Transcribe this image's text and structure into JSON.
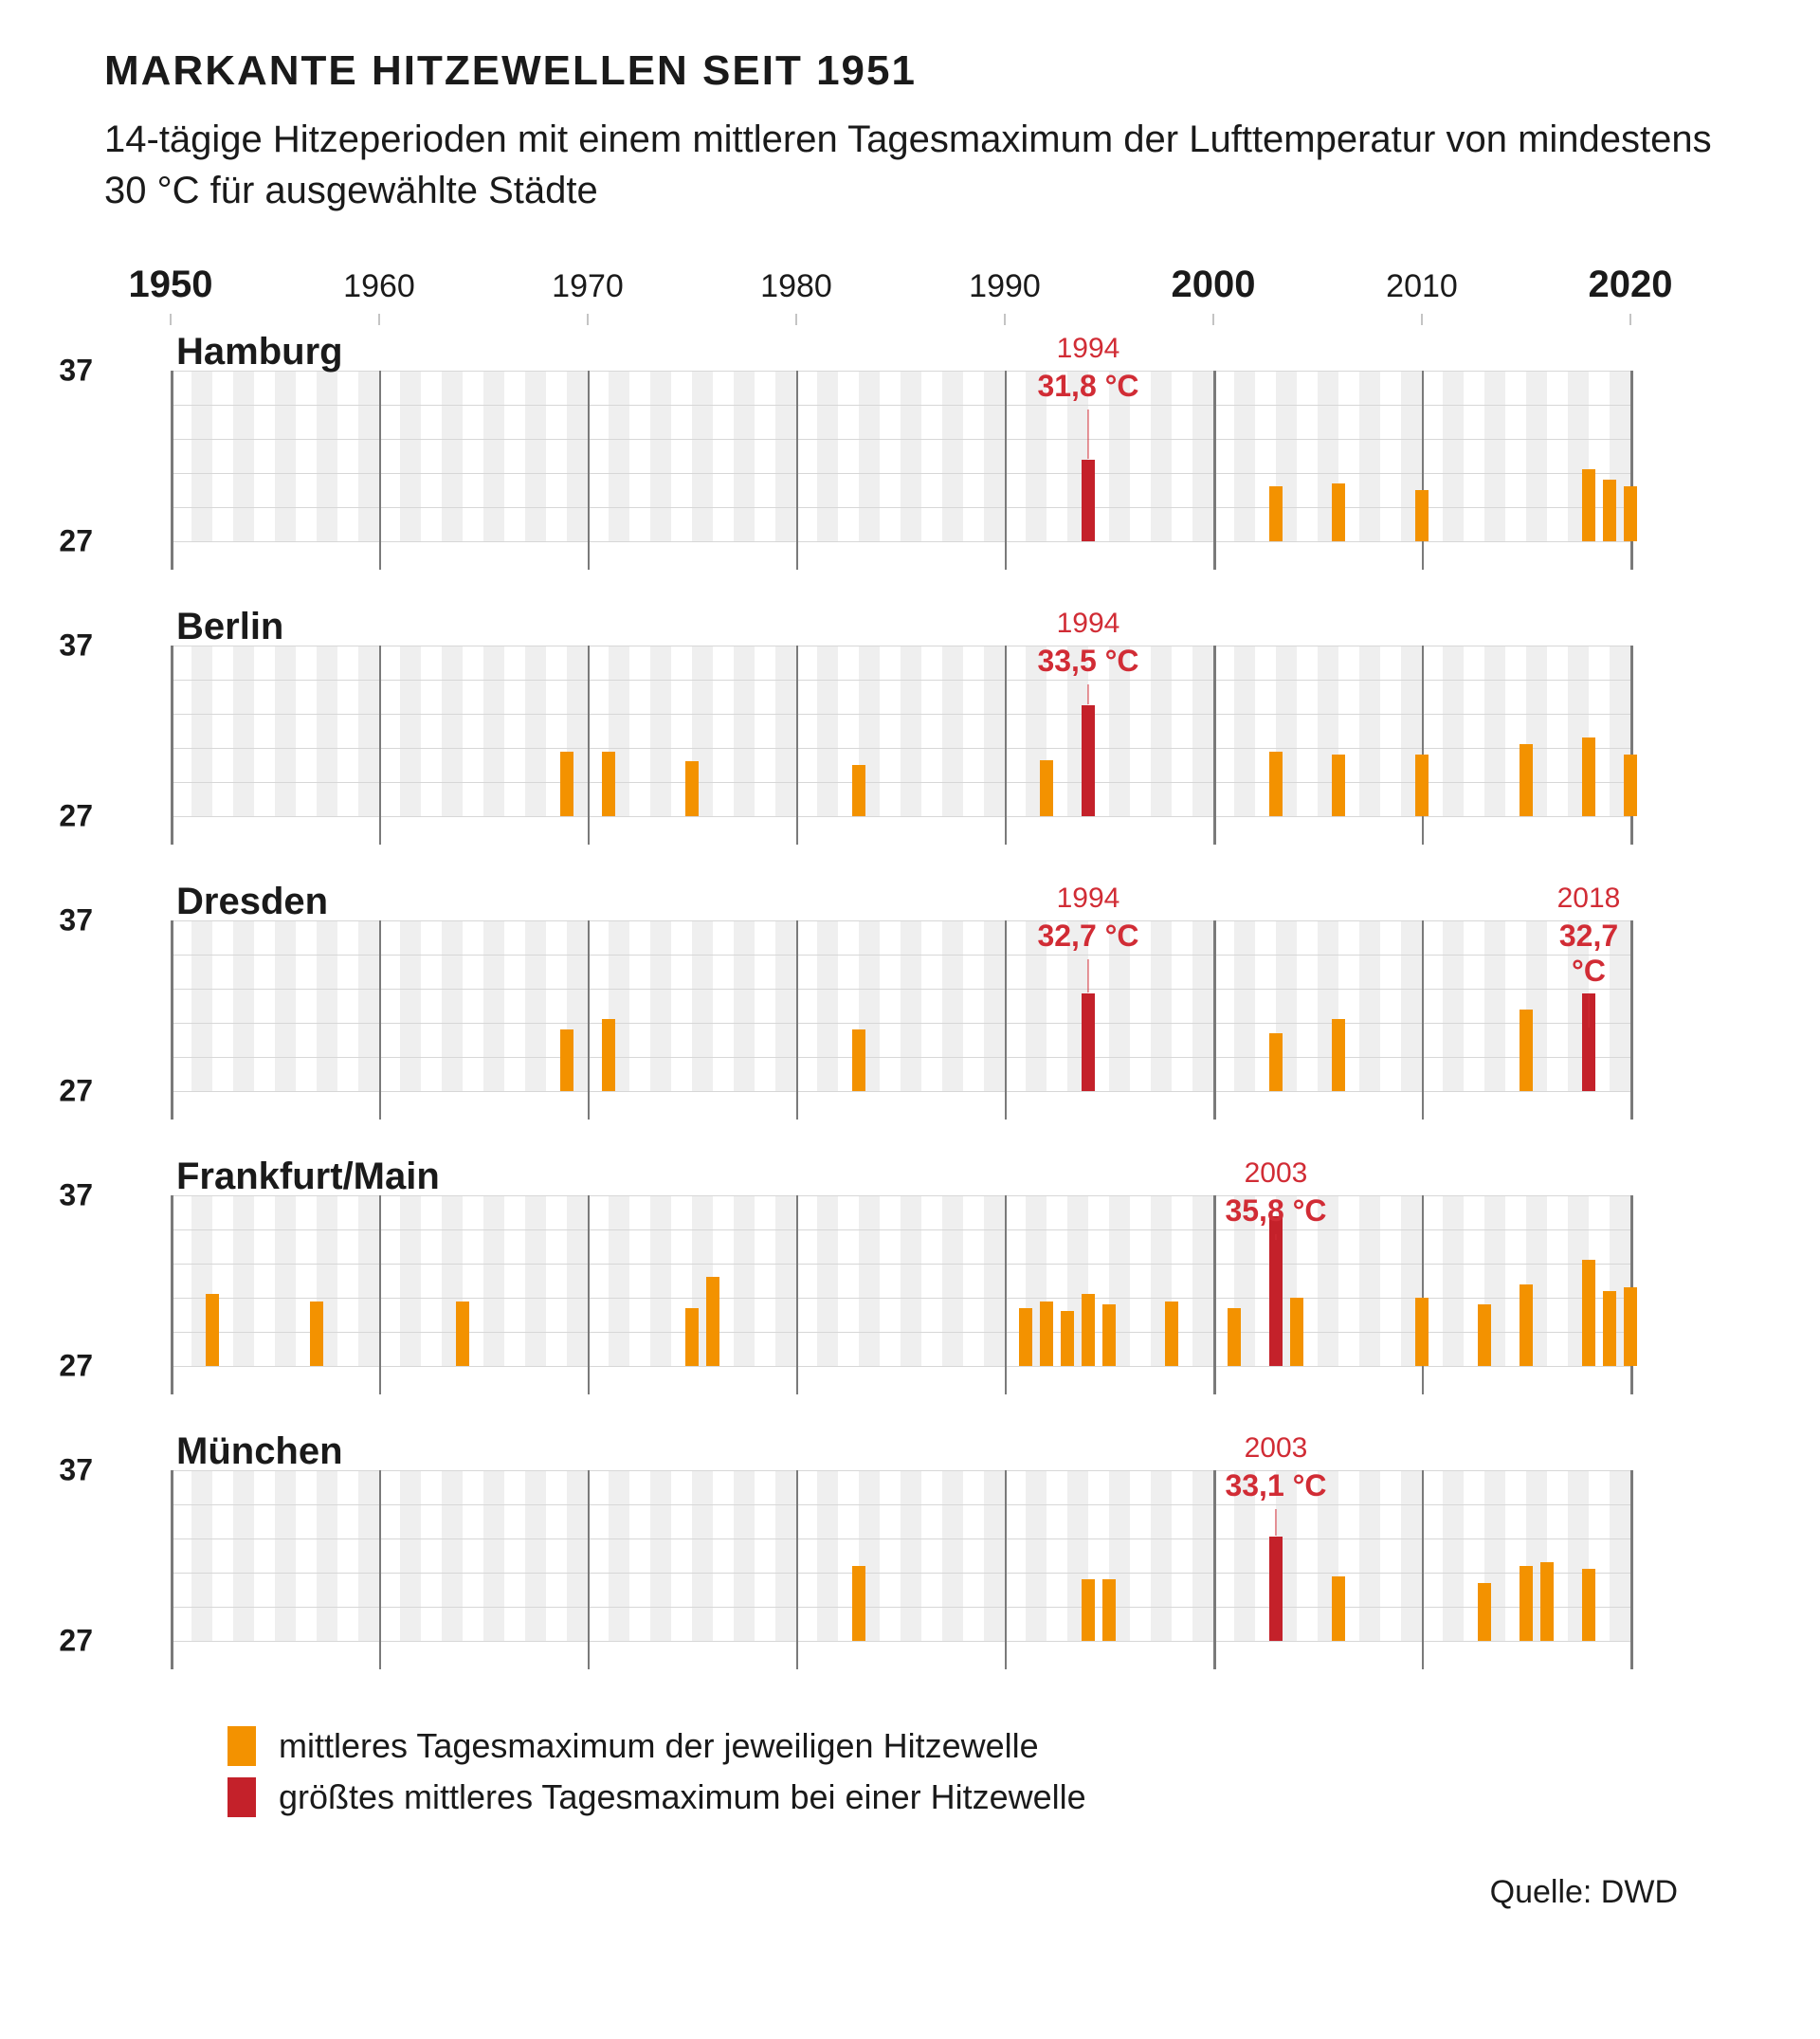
{
  "title": "MARKANTE HITZEWELLEN SEIT 1951",
  "subtitle": "14-tägige Hitzeperioden mit einem mittleren Tagesmaximum der Lufttemperatur von mindestens 30 °C für ausgewählte Städte",
  "source_label": "Quelle: DWD",
  "colors": {
    "orange": "#f39200",
    "red": "#c4212a",
    "red_text": "#d12c35",
    "stripe": "#efefef",
    "grid": "#d7d7d7",
    "decade_line": "#7a7a7a",
    "text": "#1a1a1a",
    "background": "#ffffff"
  },
  "x_axis": {
    "min": 1950,
    "max": 2020,
    "decades": [
      {
        "year": 1950,
        "bold": true
      },
      {
        "year": 1960,
        "bold": false
      },
      {
        "year": 1970,
        "bold": false
      },
      {
        "year": 1980,
        "bold": false
      },
      {
        "year": 1990,
        "bold": false
      },
      {
        "year": 2000,
        "bold": true
      },
      {
        "year": 2010,
        "bold": false
      },
      {
        "year": 2020,
        "bold": true
      }
    ]
  },
  "y_axis": {
    "min": 27,
    "max": 37,
    "ticks": [
      27,
      37
    ],
    "hlines": [
      27,
      29,
      31,
      33,
      35,
      37
    ],
    "unit_label": "°C",
    "unit_at": 32
  },
  "legend": [
    {
      "color_key": "orange",
      "text": "mittleres Tagesmaximum der jeweiligen Hitzewelle"
    },
    {
      "color_key": "red",
      "text": "größtes mittleres Tagesmaximum bei einer Hitzewelle"
    }
  ],
  "panels": [
    {
      "city": "Hamburg",
      "bars": [
        {
          "year": 1994,
          "value": 31.8,
          "peak": true
        },
        {
          "year": 2003,
          "value": 30.2
        },
        {
          "year": 2006,
          "value": 30.4
        },
        {
          "year": 2010,
          "value": 30.0
        },
        {
          "year": 2018,
          "value": 31.2
        },
        {
          "year": 2019,
          "value": 30.6
        },
        {
          "year": 2020,
          "value": 30.2
        }
      ],
      "callouts": [
        {
          "year": 1994,
          "value_label": "31,8 °C"
        }
      ]
    },
    {
      "city": "Berlin",
      "bars": [
        {
          "year": 1969,
          "value": 30.8
        },
        {
          "year": 1971,
          "value": 30.8
        },
        {
          "year": 1975,
          "value": 30.2
        },
        {
          "year": 1983,
          "value": 30.0
        },
        {
          "year": 1992,
          "value": 30.3
        },
        {
          "year": 1994,
          "value": 33.5,
          "peak": true
        },
        {
          "year": 2003,
          "value": 30.8
        },
        {
          "year": 2006,
          "value": 30.6
        },
        {
          "year": 2010,
          "value": 30.6
        },
        {
          "year": 2015,
          "value": 31.2
        },
        {
          "year": 2018,
          "value": 31.6
        },
        {
          "year": 2020,
          "value": 30.6
        }
      ],
      "callouts": [
        {
          "year": 1994,
          "value_label": "33,5 °C"
        }
      ]
    },
    {
      "city": "Dresden",
      "bars": [
        {
          "year": 1969,
          "value": 30.6
        },
        {
          "year": 1971,
          "value": 31.2
        },
        {
          "year": 1983,
          "value": 30.6
        },
        {
          "year": 1994,
          "value": 32.7,
          "peak": true
        },
        {
          "year": 2003,
          "value": 30.4
        },
        {
          "year": 2006,
          "value": 31.2
        },
        {
          "year": 2015,
          "value": 31.8
        },
        {
          "year": 2018,
          "value": 32.7,
          "peak": true
        }
      ],
      "callouts": [
        {
          "year": 1994,
          "value_label": "32,7 °C"
        },
        {
          "year": 2018,
          "value_label": "32,7 °C"
        }
      ]
    },
    {
      "city": "Frankfurt/Main",
      "bars": [
        {
          "year": 1952,
          "value": 31.2
        },
        {
          "year": 1957,
          "value": 30.8
        },
        {
          "year": 1964,
          "value": 30.8
        },
        {
          "year": 1975,
          "value": 30.4
        },
        {
          "year": 1976,
          "value": 32.2
        },
        {
          "year": 1991,
          "value": 30.4
        },
        {
          "year": 1992,
          "value": 30.8
        },
        {
          "year": 1993,
          "value": 30.2
        },
        {
          "year": 1994,
          "value": 31.2
        },
        {
          "year": 1995,
          "value": 30.6
        },
        {
          "year": 1998,
          "value": 30.8
        },
        {
          "year": 2001,
          "value": 30.4
        },
        {
          "year": 2003,
          "value": 35.8,
          "peak": true
        },
        {
          "year": 2004,
          "value": 31.0
        },
        {
          "year": 2010,
          "value": 31.0
        },
        {
          "year": 2013,
          "value": 30.6
        },
        {
          "year": 2015,
          "value": 31.8
        },
        {
          "year": 2018,
          "value": 33.2
        },
        {
          "year": 2019,
          "value": 31.4
        },
        {
          "year": 2020,
          "value": 31.6
        }
      ],
      "callouts": [
        {
          "year": 2003,
          "value_label": "35,8 °C"
        }
      ]
    },
    {
      "city": "München",
      "bars": [
        {
          "year": 1983,
          "value": 31.4
        },
        {
          "year": 1994,
          "value": 30.6
        },
        {
          "year": 1995,
          "value": 30.6
        },
        {
          "year": 2003,
          "value": 33.1,
          "peak": true
        },
        {
          "year": 2006,
          "value": 30.8
        },
        {
          "year": 2013,
          "value": 30.4
        },
        {
          "year": 2015,
          "value": 31.4
        },
        {
          "year": 2016,
          "value": 31.6
        },
        {
          "year": 2018,
          "value": 31.2
        }
      ],
      "callouts": [
        {
          "year": 2003,
          "value_label": "33,1 °C"
        }
      ]
    }
  ]
}
